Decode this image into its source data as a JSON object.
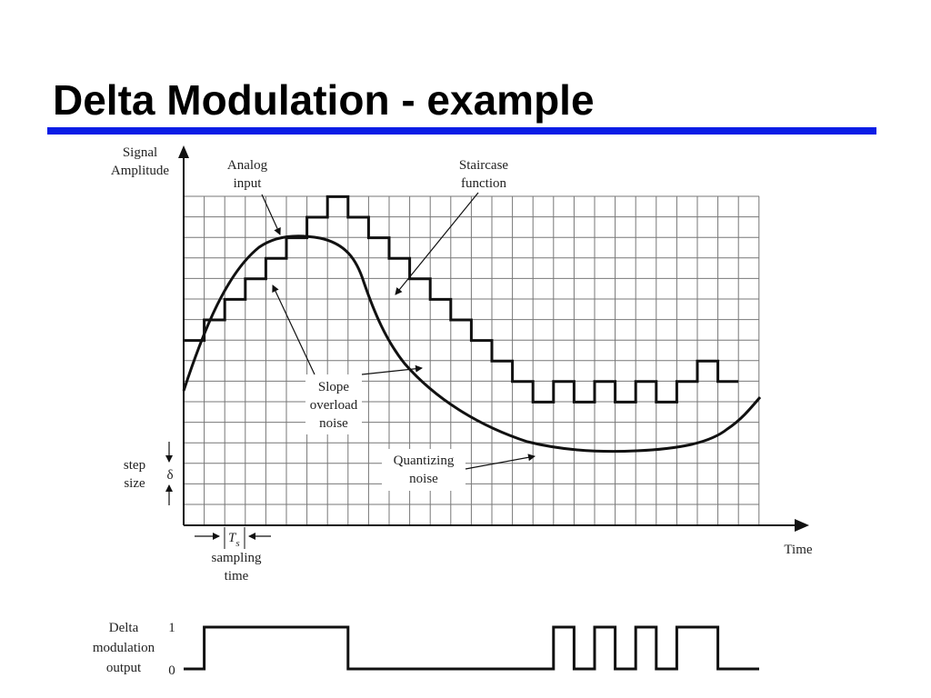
{
  "slide": {
    "title": "Delta Modulation - example",
    "rule_color": "#0a1de6"
  },
  "diagram": {
    "y_axis_label": [
      "Signal",
      "Amplitude"
    ],
    "x_axis_label": "Time",
    "analog_label": [
      "Analog",
      "input"
    ],
    "staircase_label": [
      "Staircase",
      "function"
    ],
    "slope_label": [
      "Slope",
      "overload",
      "noise"
    ],
    "quant_label": [
      "Quantizing",
      "noise"
    ],
    "step_label": [
      "step",
      "size"
    ],
    "delta_symbol": "δ",
    "ts_symbol": "T",
    "ts_subscript": "s",
    "sampling_label": [
      "sampling",
      "time"
    ],
    "dm_label": [
      "Delta",
      "modulation",
      "output"
    ],
    "level_one": "1",
    "level_zero": "0"
  },
  "signal": {
    "bits": [
      1,
      1,
      1,
      1,
      1,
      1,
      1,
      0,
      0,
      0,
      0,
      0,
      0,
      0,
      0,
      0,
      0,
      1,
      0,
      1,
      0,
      1,
      0,
      1,
      1,
      0
    ],
    "start_level": 9
  }
}
